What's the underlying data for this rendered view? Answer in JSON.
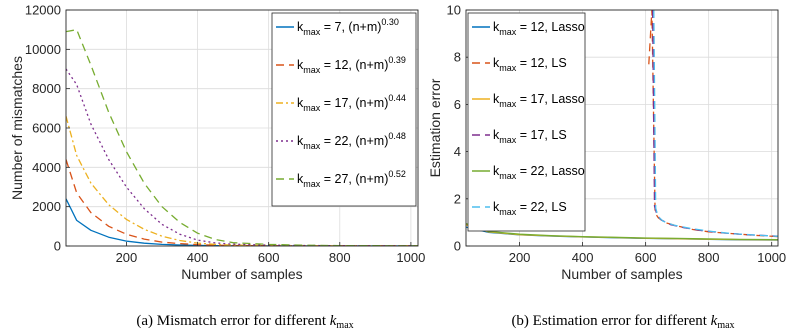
{
  "chart_data": [
    {
      "type": "line",
      "caption": "(a) Mismatch error for different ",
      "caption_math": "k",
      "caption_sub": "max",
      "xlabel": "Number of samples",
      "ylabel": "Number of mismatches",
      "xlim": [
        30,
        1020
      ],
      "ylim": [
        0,
        12000
      ],
      "xticks": [
        200,
        400,
        600,
        800,
        1000
      ],
      "yticks": [
        0,
        2000,
        4000,
        6000,
        8000,
        10000,
        12000
      ],
      "grid": true,
      "legend_position": "top-right",
      "x": [
        30,
        60,
        100,
        150,
        200,
        250,
        300,
        350,
        400,
        450,
        500,
        600,
        700,
        800,
        900,
        1020
      ],
      "series": [
        {
          "name_prefix": "k",
          "name_sub": "max",
          "name_mid": " = 7, (n+m)",
          "name_sup": "0.30",
          "color": "#0072BD",
          "dash": "",
          "values": [
            2400,
            1300,
            800,
            450,
            250,
            140,
            80,
            50,
            30,
            20,
            10,
            5,
            5,
            5,
            5,
            5
          ]
        },
        {
          "name_prefix": "k",
          "name_sub": "max",
          "name_mid": " = 12, (n+m)",
          "name_sup": "0.39",
          "color": "#D95319",
          "dash": "8,5",
          "values": [
            4400,
            2700,
            1700,
            1000,
            600,
            350,
            200,
            120,
            70,
            40,
            25,
            15,
            10,
            10,
            10,
            10
          ]
        },
        {
          "name_prefix": "k",
          "name_sub": "max",
          "name_mid": " = 17, (n+m)",
          "name_sup": "0.44",
          "color": "#EDB120",
          "dash": "7,3,2,3",
          "values": [
            6600,
            4600,
            3200,
            2100,
            1350,
            850,
            500,
            280,
            150,
            80,
            45,
            25,
            15,
            10,
            10,
            10
          ]
        },
        {
          "name_prefix": "k",
          "name_sub": "max",
          "name_mid": " = 22, (n+m)",
          "name_sup": "0.48",
          "color": "#7E2F8E",
          "dash": "2,3",
          "values": [
            9000,
            8200,
            6200,
            4400,
            3000,
            1900,
            1100,
            600,
            300,
            160,
            90,
            45,
            25,
            15,
            10,
            10
          ]
        },
        {
          "name_prefix": "k",
          "name_sub": "max",
          "name_mid": " = 27, (n+m)",
          "name_sup": "0.52",
          "color": "#77AC30",
          "dash": "8,5",
          "values": [
            10900,
            11000,
            9200,
            6800,
            4800,
            3200,
            2000,
            1200,
            650,
            330,
            170,
            80,
            40,
            20,
            15,
            10
          ]
        }
      ]
    },
    {
      "type": "line",
      "caption": "(b) Estimation error for different ",
      "caption_math": "k",
      "caption_sub": "max",
      "xlabel": "Number of samples",
      "ylabel": "Estimation error",
      "xlim": [
        30,
        1020
      ],
      "ylim": [
        0,
        10
      ],
      "xticks": [
        200,
        400,
        600,
        800,
        1000
      ],
      "yticks": [
        0,
        2,
        4,
        6,
        8,
        10
      ],
      "grid": true,
      "legend_position": "top-left",
      "series": [
        {
          "name_prefix": "k",
          "name_sub": "max",
          "name_mid": " = 12, Lasso",
          "color": "#0072BD",
          "dash": "",
          "x": [
            30,
            100,
            200,
            300,
            400,
            500,
            600,
            700,
            800,
            900,
            1020
          ],
          "values": [
            0.8,
            0.58,
            0.47,
            0.42,
            0.38,
            0.35,
            0.32,
            0.3,
            0.28,
            0.26,
            0.25
          ]
        },
        {
          "name_prefix": "k",
          "name_sub": "max",
          "name_mid": " = 12, LS",
          "color": "#D95319",
          "dash": "8,5",
          "x": [
            610,
            620,
            630,
            640,
            660,
            700,
            750,
            800,
            850,
            900,
            950,
            1020
          ],
          "values": [
            7.7,
            10.0,
            1.4,
            1.2,
            1.0,
            0.85,
            0.7,
            0.6,
            0.55,
            0.5,
            0.45,
            0.4
          ]
        },
        {
          "name_prefix": "k",
          "name_sub": "max",
          "name_mid": " = 17, Lasso",
          "color": "#EDB120",
          "dash": "",
          "x": [
            30,
            100,
            200,
            300,
            400,
            500,
            600,
            700,
            800,
            900,
            1020
          ],
          "values": [
            0.9,
            0.6,
            0.48,
            0.43,
            0.39,
            0.36,
            0.33,
            0.31,
            0.29,
            0.27,
            0.26
          ]
        },
        {
          "name_prefix": "k",
          "name_sub": "max",
          "name_mid": " = 17, LS",
          "color": "#7E2F8E",
          "dash": "8,5",
          "x": [
            622,
            628,
            636,
            650,
            680,
            720,
            780,
            850,
            920,
            1020
          ],
          "values": [
            10.0,
            1.7,
            1.3,
            1.1,
            0.9,
            0.78,
            0.65,
            0.55,
            0.48,
            0.42
          ]
        },
        {
          "name_prefix": "k",
          "name_sub": "max",
          "name_mid": " = 22, Lasso",
          "color": "#77AC30",
          "dash": "",
          "x": [
            30,
            100,
            200,
            300,
            400,
            500,
            600,
            700,
            800,
            900,
            1020
          ],
          "values": [
            0.95,
            0.62,
            0.5,
            0.44,
            0.4,
            0.37,
            0.34,
            0.32,
            0.3,
            0.28,
            0.27
          ]
        },
        {
          "name_prefix": "k",
          "name_sub": "max",
          "name_mid": " = 22, LS",
          "color": "#4DBEEE",
          "dash": "8,5",
          "x": [
            626,
            632,
            640,
            655,
            690,
            740,
            800,
            870,
            950,
            1020
          ],
          "values": [
            10.0,
            1.6,
            1.25,
            1.05,
            0.88,
            0.75,
            0.63,
            0.53,
            0.46,
            0.41
          ]
        }
      ]
    }
  ]
}
